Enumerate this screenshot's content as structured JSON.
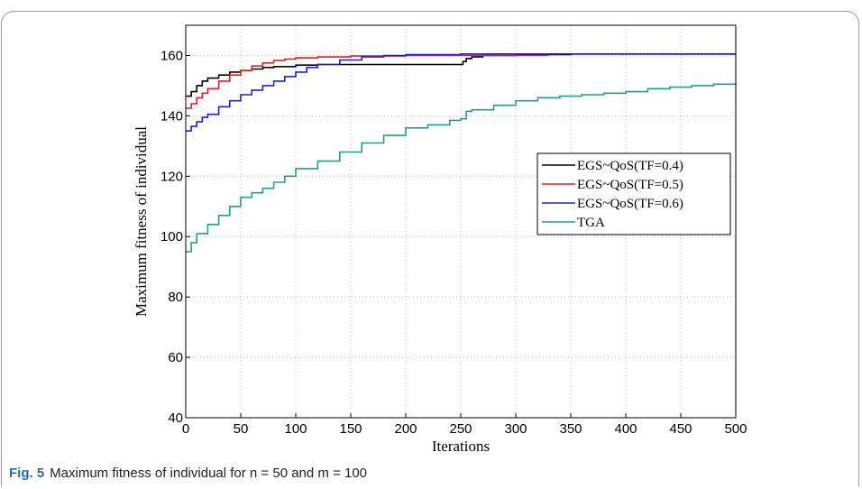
{
  "caption": {
    "fig_label": "Fig. 5",
    "text": "Maximum fitness of individual for n = 50 and m = 100"
  },
  "chart_data": {
    "type": "line",
    "title": "",
    "xlabel": "Iterations",
    "ylabel": "Maximum fitness of individual",
    "xlim": [
      0,
      500
    ],
    "ylim": [
      40,
      170
    ],
    "xticks": [
      0,
      50,
      100,
      150,
      200,
      250,
      300,
      350,
      400,
      450,
      500
    ],
    "yticks": [
      40,
      60,
      80,
      100,
      120,
      140,
      160
    ],
    "grid": true,
    "legend_position": "right-middle",
    "series": [
      {
        "name": "EGS~QoS(TF=0.4)",
        "color": "#000000",
        "x": [
          0,
          5,
          10,
          15,
          20,
          30,
          40,
          50,
          60,
          70,
          80,
          100,
          120,
          150,
          200,
          250,
          252,
          255,
          260,
          270,
          300,
          350,
          400,
          450,
          500
        ],
        "y": [
          146.5,
          148,
          150,
          151.5,
          152.5,
          153.5,
          154.5,
          155,
          155.5,
          156,
          156.3,
          156.8,
          157,
          157,
          157,
          157,
          158,
          159,
          159.5,
          160,
          160.3,
          160.5,
          160.5,
          160.5,
          160.5
        ]
      },
      {
        "name": "EGS~QoS(TF=0.5)",
        "color": "#e02020",
        "x": [
          0,
          5,
          10,
          15,
          20,
          30,
          40,
          50,
          60,
          70,
          80,
          90,
          100,
          120,
          150,
          200,
          250,
          300,
          330
        ],
        "y": [
          142.5,
          144,
          146,
          147.5,
          149,
          151.5,
          153.5,
          155,
          156.5,
          157.5,
          158.3,
          158.8,
          159.2,
          159.5,
          159.8,
          160,
          160,
          160,
          160
        ]
      },
      {
        "name": "EGS~QoS(TF=0.6)",
        "color": "#2020d0",
        "x": [
          0,
          5,
          10,
          15,
          20,
          30,
          40,
          50,
          60,
          70,
          80,
          90,
          100,
          110,
          120,
          140,
          160,
          180,
          200,
          250,
          300,
          350,
          400,
          450,
          500
        ],
        "y": [
          135,
          136.5,
          138,
          139.5,
          140.5,
          143,
          145,
          147,
          148.5,
          150,
          151.5,
          153,
          154.5,
          156,
          157,
          158.5,
          159.5,
          160,
          160.3,
          160.5,
          160.5,
          160.5,
          160.5,
          160.5,
          160.5
        ]
      },
      {
        "name": "TGA",
        "color": "#2a9a8a",
        "x": [
          0,
          5,
          10,
          20,
          30,
          40,
          50,
          60,
          70,
          80,
          90,
          100,
          120,
          140,
          160,
          180,
          200,
          220,
          240,
          250,
          255,
          260,
          280,
          300,
          320,
          340,
          360,
          380,
          400,
          420,
          440,
          460,
          480,
          500
        ],
        "y": [
          95,
          98,
          101,
          104,
          107,
          110,
          113,
          114.5,
          116,
          118,
          120,
          122.5,
          125,
          128,
          131,
          133.5,
          136,
          137,
          138.5,
          139,
          141.5,
          142,
          143.5,
          145,
          146,
          146.5,
          147,
          147.5,
          148,
          149,
          149.5,
          150,
          150.5,
          151
        ]
      }
    ]
  }
}
